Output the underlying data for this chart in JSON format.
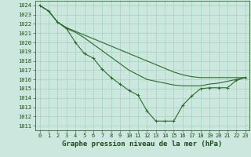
{
  "title": "Graphe pression niveau de la mer (hPa)",
  "bg_color": "#cce8de",
  "grid_color": "#99ccbb",
  "line_color": "#2d6a2d",
  "xlim": [
    0,
    23
  ],
  "ylim": [
    1011,
    1024
  ],
  "xticks": [
    0,
    1,
    2,
    3,
    4,
    5,
    6,
    7,
    8,
    9,
    10,
    11,
    12,
    13,
    14,
    15,
    16,
    17,
    18,
    19,
    20,
    21,
    22,
    23
  ],
  "yticks": [
    1011,
    1012,
    1013,
    1014,
    1015,
    1016,
    1017,
    1018,
    1019,
    1020,
    1021,
    1022,
    1023,
    1024
  ],
  "tick_fontsize": 5.0,
  "title_fontsize": 6.5,
  "series": [
    {
      "x": [
        0,
        1,
        2,
        3,
        4,
        5,
        6,
        7,
        8,
        9,
        10,
        11,
        12,
        13,
        14,
        15,
        16,
        17,
        18,
        19,
        20,
        21,
        22,
        23
      ],
      "y": [
        1024,
        1023.4,
        1022.2,
        1021.5,
        1020.0,
        1018.8,
        1018.3,
        1017.1,
        1016.2,
        1015.5,
        1014.8,
        1014.3,
        1012.6,
        1011.5,
        1011.5,
        1011.5,
        1013.2,
        1014.2,
        1015.0,
        1015.1,
        1015.1,
        1015.1,
        1015.9,
        1016.2
      ],
      "marker": true,
      "lw": 0.8
    },
    {
      "x": [
        0,
        1,
        2,
        3,
        4,
        5,
        6,
        7,
        8,
        9,
        10,
        11,
        12,
        13,
        14,
        15,
        16,
        17,
        18,
        19,
        20,
        21,
        22,
        23
      ],
      "y": [
        1024,
        1023.4,
        1022.2,
        1021.5,
        1021.1,
        1020.5,
        1019.8,
        1019.1,
        1018.4,
        1017.7,
        1017.0,
        1016.5,
        1016.0,
        1015.8,
        1015.6,
        1015.4,
        1015.3,
        1015.3,
        1015.3,
        1015.5,
        1015.6,
        1015.8,
        1016.0,
        1016.2
      ],
      "marker": false,
      "lw": 0.8
    },
    {
      "x": [
        0,
        1,
        2,
        3,
        4,
        5,
        6,
        7,
        8,
        9,
        10,
        11,
        12,
        13,
        14,
        15,
        16,
        17,
        18,
        19,
        20,
        21,
        22,
        23
      ],
      "y": [
        1024,
        1023.4,
        1022.2,
        1021.6,
        1021.2,
        1020.8,
        1020.4,
        1020.0,
        1019.6,
        1019.2,
        1018.8,
        1018.4,
        1018.0,
        1017.6,
        1017.2,
        1016.8,
        1016.5,
        1016.3,
        1016.2,
        1016.2,
        1016.2,
        1016.2,
        1016.2,
        1016.2
      ],
      "marker": false,
      "lw": 0.8
    }
  ]
}
